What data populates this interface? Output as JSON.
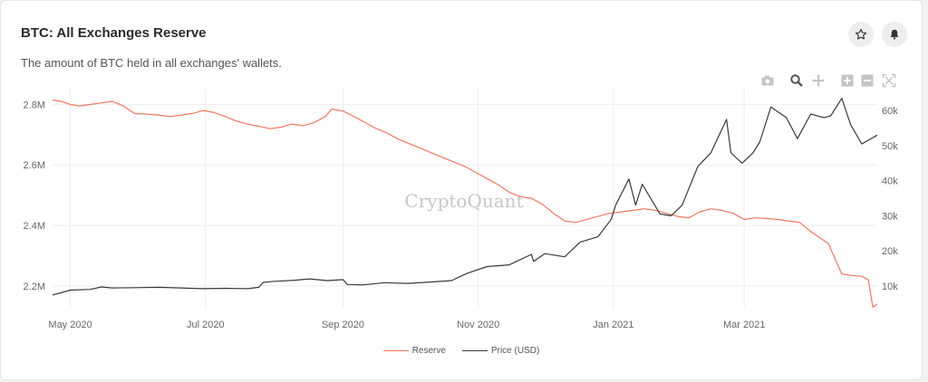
{
  "header": {
    "title": "BTC: All Exchanges Reserve",
    "subtitle": "The amount of BTC held in all exchanges' wallets."
  },
  "actions": {
    "star_icon": "star-icon",
    "bell_icon": "bell-icon"
  },
  "toolbar": [
    "camera-icon",
    "zoom-icon",
    "pan-icon",
    "zoom-in-icon",
    "zoom-out-icon",
    "autoscale-icon"
  ],
  "watermark": "CryptoQuant",
  "colors": {
    "reserve": "#f07860",
    "price": "#3a3a3a",
    "grid": "#eeeeee"
  },
  "legend": [
    {
      "label": "Reserve",
      "series": "reserve"
    },
    {
      "label": "Price (USD)",
      "series": "price"
    }
  ],
  "chart_data": {
    "type": "line",
    "x_start": "2020-04-23",
    "x_end": "2021-04-30",
    "x_ticks": [
      {
        "date": "2020-05-01",
        "label": "May 2020"
      },
      {
        "date": "2020-07-01",
        "label": "Jul 2020"
      },
      {
        "date": "2020-09-01",
        "label": "Sep 2020"
      },
      {
        "date": "2020-11-01",
        "label": "Nov 2020"
      },
      {
        "date": "2021-01-01",
        "label": "Jan 2021"
      },
      {
        "date": "2021-03-01",
        "label": "Mar 2021"
      }
    ],
    "y_left": {
      "min": 2.125,
      "max": 2.855,
      "ticks": [
        {
          "value": 2.2,
          "label": "2.2M"
        },
        {
          "value": 2.4,
          "label": "2.4M"
        },
        {
          "value": 2.6,
          "label": "2.6M"
        },
        {
          "value": 2.8,
          "label": "2.8M"
        }
      ]
    },
    "y_right": {
      "min": 3500,
      "max": 66500,
      "ticks": [
        {
          "value": 10000,
          "label": "10k"
        },
        {
          "value": 20000,
          "label": "20k"
        },
        {
          "value": 30000,
          "label": "30k"
        },
        {
          "value": 40000,
          "label": "40k"
        },
        {
          "value": 50000,
          "label": "50k"
        },
        {
          "value": 60000,
          "label": "60k"
        }
      ]
    },
    "grid": true,
    "legend_position": "bottom-center",
    "series": [
      {
        "key": "reserve",
        "name": "Reserve",
        "axis": "left",
        "unit": "M BTC",
        "points": [
          [
            "2020-04-23",
            2.815
          ],
          [
            "2020-04-27",
            2.81
          ],
          [
            "2020-05-01",
            2.8
          ],
          [
            "2020-05-05",
            2.795
          ],
          [
            "2020-05-10",
            2.8
          ],
          [
            "2020-05-15",
            2.805
          ],
          [
            "2020-05-20",
            2.81
          ],
          [
            "2020-05-25",
            2.795
          ],
          [
            "2020-05-30",
            2.77
          ],
          [
            "2020-06-05",
            2.768
          ],
          [
            "2020-06-10",
            2.765
          ],
          [
            "2020-06-15",
            2.76
          ],
          [
            "2020-06-20",
            2.765
          ],
          [
            "2020-06-25",
            2.77
          ],
          [
            "2020-06-30",
            2.78
          ],
          [
            "2020-07-05",
            2.773
          ],
          [
            "2020-07-10",
            2.76
          ],
          [
            "2020-07-15",
            2.745
          ],
          [
            "2020-07-20",
            2.735
          ],
          [
            "2020-07-25",
            2.728
          ],
          [
            "2020-07-30",
            2.72
          ],
          [
            "2020-08-04",
            2.725
          ],
          [
            "2020-08-09",
            2.735
          ],
          [
            "2020-08-14",
            2.73
          ],
          [
            "2020-08-19",
            2.74
          ],
          [
            "2020-08-24",
            2.76
          ],
          [
            "2020-08-27",
            2.785
          ],
          [
            "2020-09-01",
            2.778
          ],
          [
            "2020-09-06",
            2.76
          ],
          [
            "2020-09-11",
            2.74
          ],
          [
            "2020-09-16",
            2.72
          ],
          [
            "2020-09-21",
            2.705
          ],
          [
            "2020-09-26",
            2.685
          ],
          [
            "2020-10-01",
            2.67
          ],
          [
            "2020-10-06",
            2.655
          ],
          [
            "2020-10-11",
            2.64
          ],
          [
            "2020-10-16",
            2.625
          ],
          [
            "2020-10-21",
            2.61
          ],
          [
            "2020-10-26",
            2.595
          ],
          [
            "2020-10-31",
            2.575
          ],
          [
            "2020-11-05",
            2.555
          ],
          [
            "2020-11-10",
            2.535
          ],
          [
            "2020-11-15",
            2.51
          ],
          [
            "2020-11-20",
            2.495
          ],
          [
            "2020-11-25",
            2.49
          ],
          [
            "2020-11-30",
            2.47
          ],
          [
            "2020-12-05",
            2.44
          ],
          [
            "2020-12-10",
            2.415
          ],
          [
            "2020-12-15",
            2.41
          ],
          [
            "2020-12-20",
            2.42
          ],
          [
            "2020-12-25",
            2.43
          ],
          [
            "2020-12-30",
            2.44
          ],
          [
            "2021-01-05",
            2.445
          ],
          [
            "2021-01-10",
            2.45
          ],
          [
            "2021-01-15",
            2.455
          ],
          [
            "2021-01-20",
            2.45
          ],
          [
            "2021-01-25",
            2.44
          ],
          [
            "2021-01-30",
            2.43
          ],
          [
            "2021-02-04",
            2.425
          ],
          [
            "2021-02-09",
            2.445
          ],
          [
            "2021-02-14",
            2.455
          ],
          [
            "2021-02-19",
            2.45
          ],
          [
            "2021-02-24",
            2.44
          ],
          [
            "2021-03-01",
            2.42
          ],
          [
            "2021-03-06",
            2.425
          ],
          [
            "2021-03-11",
            2.423
          ],
          [
            "2021-03-16",
            2.42
          ],
          [
            "2021-03-21",
            2.415
          ],
          [
            "2021-03-26",
            2.41
          ],
          [
            "2021-03-31",
            2.38
          ],
          [
            "2021-04-05",
            2.355
          ],
          [
            "2021-04-08",
            2.34
          ],
          [
            "2021-04-10",
            2.305
          ],
          [
            "2021-04-14",
            2.24
          ],
          [
            "2021-04-18",
            2.235
          ],
          [
            "2021-04-23",
            2.232
          ],
          [
            "2021-04-26",
            2.22
          ],
          [
            "2021-04-28",
            2.13
          ],
          [
            "2021-04-30",
            2.14
          ]
        ]
      },
      {
        "key": "price",
        "name": "Price (USD)",
        "axis": "right",
        "unit": "USD",
        "points": [
          [
            "2020-04-23",
            7400
          ],
          [
            "2020-05-01",
            8800
          ],
          [
            "2020-05-10",
            9000
          ],
          [
            "2020-05-15",
            9700
          ],
          [
            "2020-05-20",
            9400
          ],
          [
            "2020-05-30",
            9500
          ],
          [
            "2020-06-10",
            9600
          ],
          [
            "2020-06-20",
            9400
          ],
          [
            "2020-06-30",
            9200
          ],
          [
            "2020-07-10",
            9300
          ],
          [
            "2020-07-20",
            9200
          ],
          [
            "2020-07-25",
            9600
          ],
          [
            "2020-07-27",
            11000
          ],
          [
            "2020-08-01",
            11300
          ],
          [
            "2020-08-10",
            11600
          ],
          [
            "2020-08-17",
            12000
          ],
          [
            "2020-08-25",
            11500
          ],
          [
            "2020-09-01",
            11800
          ],
          [
            "2020-09-03",
            10400
          ],
          [
            "2020-09-10",
            10300
          ],
          [
            "2020-09-20",
            10900
          ],
          [
            "2020-09-30",
            10700
          ],
          [
            "2020-10-10",
            11100
          ],
          [
            "2020-10-20",
            11500
          ],
          [
            "2020-10-27",
            13600
          ],
          [
            "2020-11-05",
            15500
          ],
          [
            "2020-11-15",
            16000
          ],
          [
            "2020-11-25",
            19000
          ],
          [
            "2020-11-26",
            17000
          ],
          [
            "2020-12-01",
            19200
          ],
          [
            "2020-12-10",
            18300
          ],
          [
            "2020-12-17",
            22500
          ],
          [
            "2020-12-25",
            24000
          ],
          [
            "2020-12-31",
            29000
          ],
          [
            "2021-01-02",
            33000
          ],
          [
            "2021-01-08",
            40500
          ],
          [
            "2021-01-11",
            33000
          ],
          [
            "2021-01-14",
            39000
          ],
          [
            "2021-01-22",
            30500
          ],
          [
            "2021-01-27",
            30000
          ],
          [
            "2021-02-01",
            33000
          ],
          [
            "2021-02-08",
            44000
          ],
          [
            "2021-02-14",
            48000
          ],
          [
            "2021-02-21",
            57500
          ],
          [
            "2021-02-23",
            48000
          ],
          [
            "2021-02-28",
            45000
          ],
          [
            "2021-03-05",
            48000
          ],
          [
            "2021-03-08",
            51000
          ],
          [
            "2021-03-13",
            61000
          ],
          [
            "2021-03-20",
            58000
          ],
          [
            "2021-03-25",
            52000
          ],
          [
            "2021-03-31",
            59000
          ],
          [
            "2021-04-06",
            58000
          ],
          [
            "2021-04-09",
            58500
          ],
          [
            "2021-04-14",
            63500
          ],
          [
            "2021-04-18",
            56000
          ],
          [
            "2021-04-23",
            50500
          ],
          [
            "2021-04-30",
            53000
          ]
        ]
      }
    ]
  }
}
